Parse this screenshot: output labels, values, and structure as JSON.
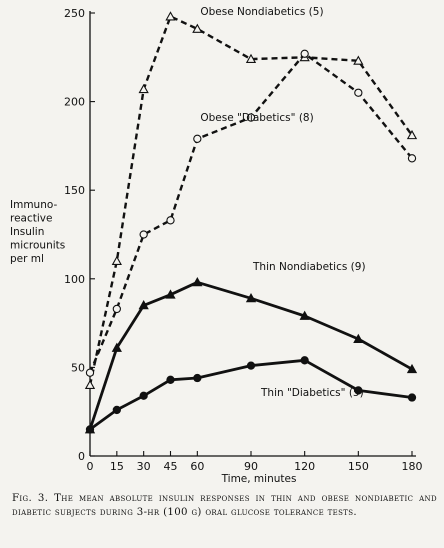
{
  "chart_data": {
    "type": "line",
    "xlabel": "Time, minutes",
    "ylabel": [
      "Immuno-",
      "reactive",
      "Insulin",
      "microunits",
      "per ml"
    ],
    "xlim": [
      0,
      180
    ],
    "ylim": [
      0,
      250
    ],
    "xticks": [
      0,
      15,
      30,
      45,
      60,
      90,
      120,
      150,
      180
    ],
    "yticks": [
      0,
      50,
      100,
      150,
      200,
      250
    ],
    "grid": false,
    "series": [
      {
        "name": "Obese Nondiabetics (5)",
        "marker": "triangle-open",
        "line": "dashed",
        "x": [
          0,
          15,
          30,
          45,
          60,
          90,
          120,
          150,
          180
        ],
        "y": [
          40,
          110,
          207,
          248,
          241,
          224,
          225,
          223,
          181
        ]
      },
      {
        "name": "Obese \"Diabetics\" (8)",
        "marker": "circle-open",
        "line": "dashed",
        "x": [
          0,
          15,
          30,
          45,
          60,
          90,
          120,
          150,
          180
        ],
        "y": [
          47,
          83,
          125,
          133,
          179,
          191,
          227,
          205,
          168
        ]
      },
      {
        "name": "Thin Nondiabetics (9)",
        "marker": "triangle-filled",
        "line": "solid",
        "x": [
          0,
          15,
          30,
          45,
          60,
          90,
          120,
          150,
          180
        ],
        "y": [
          15,
          61,
          85,
          91,
          98,
          89,
          79,
          66,
          49
        ]
      },
      {
        "name": "Thin \"Diabetics\" (5)",
        "marker": "circle-filled",
        "line": "solid",
        "x": [
          0,
          15,
          30,
          45,
          60,
          90,
          120,
          150,
          180
        ],
        "y": [
          15,
          26,
          34,
          43,
          44,
          51,
          54,
          37,
          33
        ]
      }
    ]
  },
  "caption": "Fig. 3. The mean absolute insulin responses in thin and obese nondiabetic and diabetic subjects during 3-hr (100 g) oral glucose tolerance tests."
}
